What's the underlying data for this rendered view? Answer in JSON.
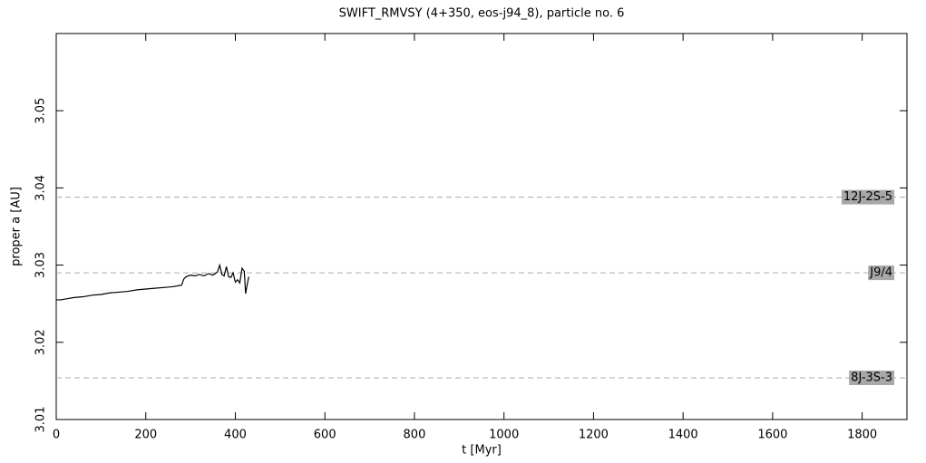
{
  "chart_data": {
    "type": "line",
    "title": "SWIFT_RMVSY (4+350, eos-j94_8), particle no. 6",
    "xlabel": "t [Myr]",
    "ylabel": "proper a [AU]",
    "x": [
      0,
      10,
      20,
      40,
      60,
      80,
      100,
      120,
      140,
      160,
      180,
      200,
      220,
      240,
      260,
      280,
      285,
      290,
      300,
      310,
      320,
      330,
      340,
      350,
      360,
      365,
      370,
      375,
      380,
      385,
      390,
      395,
      400,
      405,
      410,
      415,
      420,
      423,
      425,
      430
    ],
    "values": [
      3.0255,
      3.0255,
      3.0256,
      3.0258,
      3.0259,
      3.0261,
      3.0262,
      3.0264,
      3.0265,
      3.0266,
      3.0268,
      3.0269,
      3.027,
      3.0271,
      3.0272,
      3.0274,
      3.0282,
      3.0285,
      3.0287,
      3.0286,
      3.0288,
      3.0286,
      3.0289,
      3.0287,
      3.0291,
      3.03,
      3.0288,
      3.0286,
      3.0298,
      3.0285,
      3.0284,
      3.029,
      3.0278,
      3.0281,
      3.0277,
      3.0296,
      3.0292,
      3.0263,
      3.027,
      3.0285
    ],
    "color": "#000000",
    "xlim": [
      0,
      1900
    ],
    "xticks": [
      0,
      200,
      400,
      600,
      800,
      1000,
      1200,
      1400,
      1600,
      1800
    ],
    "ylim": [
      3.01,
      3.06
    ],
    "yticks": [
      3.01,
      3.02,
      3.03,
      3.04,
      3.05
    ],
    "reference_lines": [
      {
        "label": "12J-2S-5",
        "value": 3.0388
      },
      {
        "label": "J9/4",
        "value": 3.029
      },
      {
        "label": "8J-3S-3",
        "value": 3.0154
      }
    ]
  }
}
